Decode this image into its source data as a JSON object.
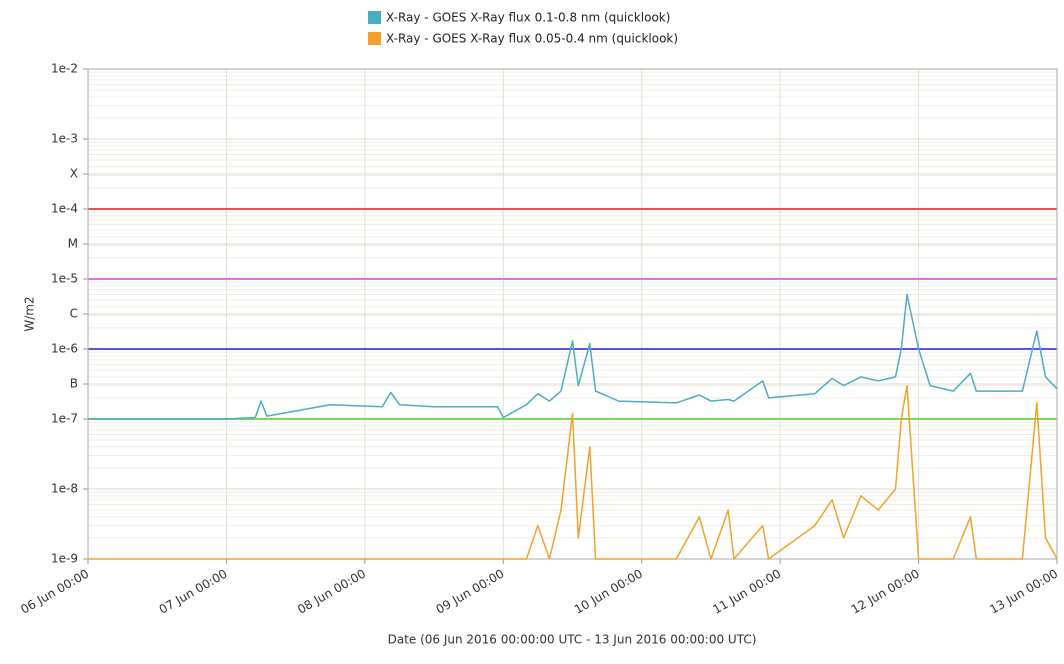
{
  "chart_data": {
    "type": "line",
    "log_y": true,
    "minor_grid": true,
    "grid": true,
    "legend": "top",
    "y_label": "W/m2",
    "x_label": "Date (06 Jun 2016 00:00:00 UTC - 13 Jun 2016 00:00:00 UTC)",
    "xlim": [
      "2016-06-06 00:00",
      "2016-06-13 00:00"
    ],
    "xticks": [
      {
        "value": "2016-06-06 00:00",
        "label": "06 Jun 00:00"
      },
      {
        "value": "2016-06-07 00:00",
        "label": "07 Jun 00:00"
      },
      {
        "value": "2016-06-08 00:00",
        "label": "08 Jun 00:00"
      },
      {
        "value": "2016-06-09 00:00",
        "label": "09 Jun 00:00"
      },
      {
        "value": "2016-06-10 00:00",
        "label": "10 Jun 00:00"
      },
      {
        "value": "2016-06-11 00:00",
        "label": "11 Jun 00:00"
      },
      {
        "value": "2016-06-12 00:00",
        "label": "12 Jun 00:00"
      },
      {
        "value": "2016-06-13 00:00",
        "label": "13 Jun 00:00"
      }
    ],
    "ylim": [
      1e-09,
      0.01
    ],
    "yticks": [
      {
        "value": 1e-09,
        "label": "1e-9"
      },
      {
        "value": 1e-08,
        "label": "1e-8"
      },
      {
        "value": 1e-07,
        "label": "1e-7"
      },
      {
        "value": 3.16e-07,
        "label": "B"
      },
      {
        "value": 1e-06,
        "label": "1e-6"
      },
      {
        "value": 3.16e-06,
        "label": "C"
      },
      {
        "value": 1e-05,
        "label": "1e-5"
      },
      {
        "value": 3.16e-05,
        "label": "M"
      },
      {
        "value": 0.0001,
        "label": "1e-4"
      },
      {
        "value": 0.000316,
        "label": "X"
      },
      {
        "value": 0.001,
        "label": "1e-3"
      },
      {
        "value": 0.01,
        "label": "1e-2"
      }
    ],
    "thresholds": [
      {
        "value": 0.0001,
        "color": "#e8534f"
      },
      {
        "value": 1e-05,
        "color": "#e86ee8"
      },
      {
        "value": 1e-06,
        "color": "#5555dd"
      },
      {
        "value": 1e-07,
        "color": "#77dd55"
      }
    ],
    "x": [
      "2016-06-06 00:00",
      "2016-06-06 12:00",
      "2016-06-07 00:00",
      "2016-06-07 05:00",
      "2016-06-07 06:00",
      "2016-06-07 07:00",
      "2016-06-07 12:00",
      "2016-06-07 18:00",
      "2016-06-08 03:00",
      "2016-06-08 04:30",
      "2016-06-08 06:00",
      "2016-06-08 12:00",
      "2016-06-08 23:00",
      "2016-06-09 00:00",
      "2016-06-09 04:00",
      "2016-06-09 06:00",
      "2016-06-09 08:00",
      "2016-06-09 10:00",
      "2016-06-09 12:00",
      "2016-06-09 13:00",
      "2016-06-09 15:00",
      "2016-06-09 16:00",
      "2016-06-09 20:00",
      "2016-06-10 06:00",
      "2016-06-10 10:00",
      "2016-06-10 12:00",
      "2016-06-10 15:00",
      "2016-06-10 16:00",
      "2016-06-10 21:00",
      "2016-06-10 22:00",
      "2016-06-11 06:00",
      "2016-06-11 09:00",
      "2016-06-11 11:00",
      "2016-06-11 14:00",
      "2016-06-11 17:00",
      "2016-06-11 20:00",
      "2016-06-11 21:00",
      "2016-06-11 22:00",
      "2016-06-12 00:00",
      "2016-06-12 02:00",
      "2016-06-12 06:00",
      "2016-06-12 09:00",
      "2016-06-12 10:00",
      "2016-06-12 18:00",
      "2016-06-12 20:30",
      "2016-06-12 22:00",
      "2016-06-13 00:00"
    ],
    "series": [
      {
        "name": "X-Ray - GOES X-Ray flux 0.1-0.8 nm (quicklook)",
        "color": "#4aaec3",
        "values": [
          1e-07,
          1e-07,
          1e-07,
          1.05e-07,
          1.8e-07,
          1.1e-07,
          1.3e-07,
          1.6e-07,
          1.5e-07,
          2.4e-07,
          1.6e-07,
          1.5e-07,
          1.5e-07,
          1.05e-07,
          1.6e-07,
          2.3e-07,
          1.8e-07,
          2.5e-07,
          1.3e-06,
          3e-07,
          1.2e-06,
          2.5e-07,
          1.8e-07,
          1.7e-07,
          2.2e-07,
          1.8e-07,
          1.9e-07,
          1.8e-07,
          3.5e-07,
          2e-07,
          2.3e-07,
          3.8e-07,
          3e-07,
          4e-07,
          3.5e-07,
          4e-07,
          1e-06,
          6e-06,
          1e-06,
          3e-07,
          2.5e-07,
          4.5e-07,
          2.5e-07,
          2.5e-07,
          1.8e-06,
          4e-07,
          2.7e-07
        ]
      },
      {
        "name": "X-Ray - GOES X-Ray flux 0.05-0.4 nm (quicklook)",
        "color": "#f0a22e",
        "values": [
          1e-09,
          1e-09,
          1e-09,
          1e-09,
          1e-09,
          1e-09,
          1e-09,
          1e-09,
          1e-09,
          1e-09,
          1e-09,
          1e-09,
          1e-09,
          1e-09,
          1e-09,
          3e-09,
          1e-09,
          5e-09,
          1.2e-07,
          2e-09,
          4e-08,
          1e-09,
          1e-09,
          1e-09,
          4e-09,
          1e-09,
          5e-09,
          1e-09,
          3e-09,
          1e-09,
          3e-09,
          7e-09,
          2e-09,
          8e-09,
          5e-09,
          1e-08,
          1e-07,
          3e-07,
          1e-09,
          1e-09,
          1e-09,
          4e-09,
          1e-09,
          1e-09,
          1.7e-07,
          2e-09,
          1e-09
        ]
      }
    ]
  }
}
